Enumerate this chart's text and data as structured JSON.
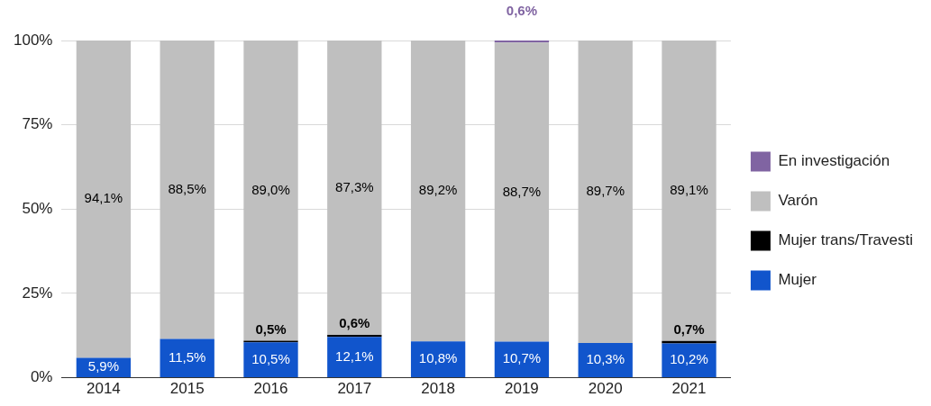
{
  "chart_data": {
    "type": "bar",
    "stacked": true,
    "categories": [
      "2014",
      "2015",
      "2016",
      "2017",
      "2018",
      "2019",
      "2020",
      "2021"
    ],
    "series": [
      {
        "name": "Mujer",
        "color": "#1155cc",
        "values": [
          5.9,
          11.5,
          10.5,
          12.1,
          10.8,
          10.7,
          10.3,
          10.2
        ],
        "value_labels": [
          "5,9%",
          "11,5%",
          "10,5%",
          "12,1%",
          "10,8%",
          "10,7%",
          "10,3%",
          "10,2%"
        ]
      },
      {
        "name": "Mujer trans/Travesti",
        "color": "#000000",
        "values": [
          0,
          0,
          0.5,
          0.6,
          0,
          0,
          0,
          0.7
        ],
        "value_labels": [
          null,
          null,
          "0,5%",
          "0,6%",
          null,
          null,
          null,
          "0,7%"
        ]
      },
      {
        "name": "Varón",
        "color": "#bfbfbf",
        "values": [
          94.1,
          88.5,
          89.0,
          87.3,
          89.2,
          88.7,
          89.7,
          89.1
        ],
        "value_labels": [
          "94,1%",
          "88,5%",
          "89,0%",
          "87,3%",
          "89,2%",
          "88,7%",
          "89,7%",
          "89,1%"
        ]
      },
      {
        "name": "En investigación",
        "color": "#8064a2",
        "values": [
          0,
          0,
          0,
          0,
          0,
          0.6,
          0,
          0
        ],
        "value_labels": [
          null,
          null,
          null,
          null,
          null,
          "0,6%",
          null,
          null
        ]
      }
    ],
    "ylim": [
      0,
      100
    ],
    "yticks": [
      {
        "value": 0,
        "label": "0%"
      },
      {
        "value": 25,
        "label": "25%"
      },
      {
        "value": 50,
        "label": "50%"
      },
      {
        "value": 75,
        "label": "75%"
      },
      {
        "value": 100,
        "label": "100%"
      }
    ],
    "grid": "y",
    "legend": "right"
  }
}
